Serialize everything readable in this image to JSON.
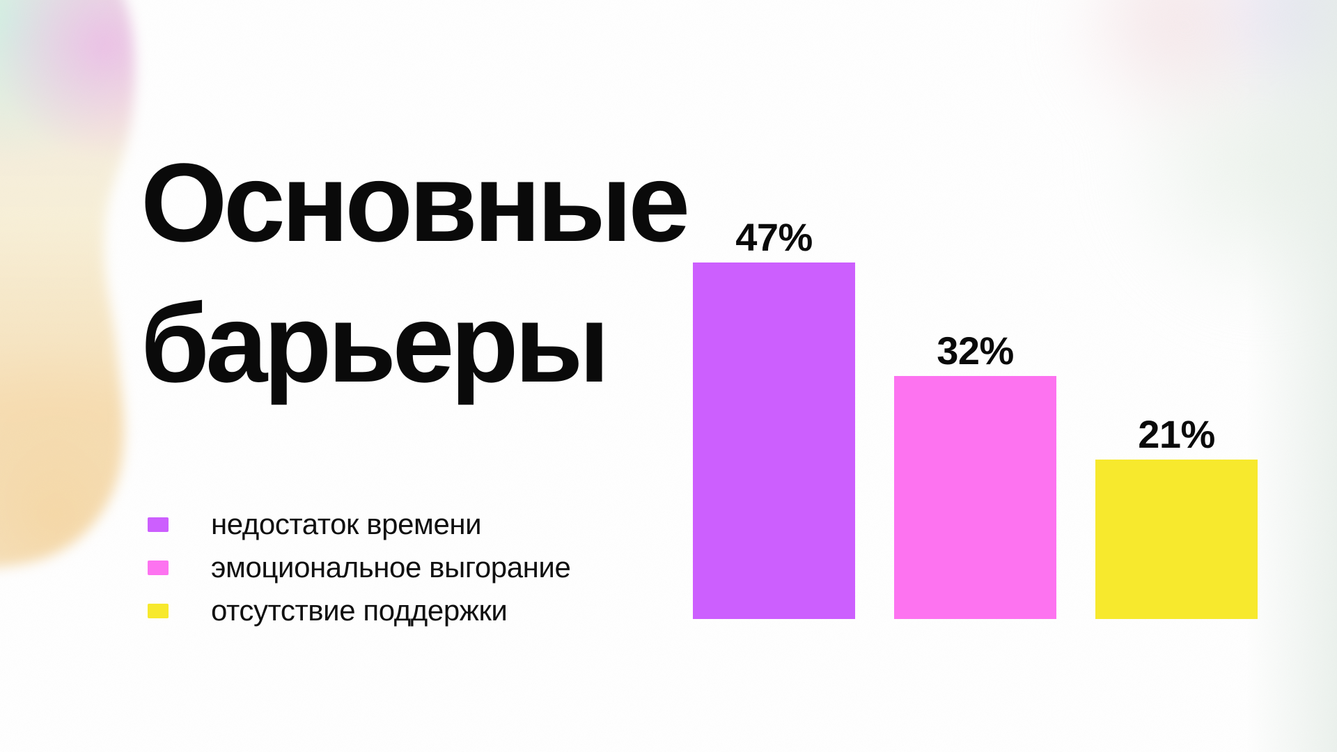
{
  "slide": {
    "title_full": "Основные барьеры",
    "title_lines": [
      "Основные",
      "барьеры"
    ],
    "background_color": "#FFFFFF",
    "text_color": "#0A0A0A"
  },
  "legend": {
    "items": [
      {
        "label": "недостаток времени",
        "color": "#CC5FFE"
      },
      {
        "label": "эмоциональное выгорание",
        "color": "#FD73F0"
      },
      {
        "label": "отсутствие поддержки",
        "color": "#F7E92D"
      }
    ]
  },
  "chart_data": {
    "type": "bar",
    "title": "Основные барьеры",
    "categories": [
      "недостаток времени",
      "эмоциональное выгорание",
      "отсутствие поддержки"
    ],
    "values": [
      47,
      32,
      21
    ],
    "value_labels": [
      "47%",
      "32%",
      "21%"
    ],
    "colors": [
      "#CC5FFE",
      "#FD73F0",
      "#F7E92D"
    ],
    "unit": "%",
    "ylim": [
      0,
      50
    ],
    "axes_visible": false,
    "grid": false,
    "legend_position": "middle-left"
  },
  "decor": {
    "left_blob_colors": [
      "#D2F1E3",
      "#ECBFE7",
      "#F8F0D8",
      "#F6D7A4"
    ],
    "top_right_blob_colors": [
      "#F4E3E6",
      "#DEDBF3",
      "#E8F0E8"
    ]
  }
}
